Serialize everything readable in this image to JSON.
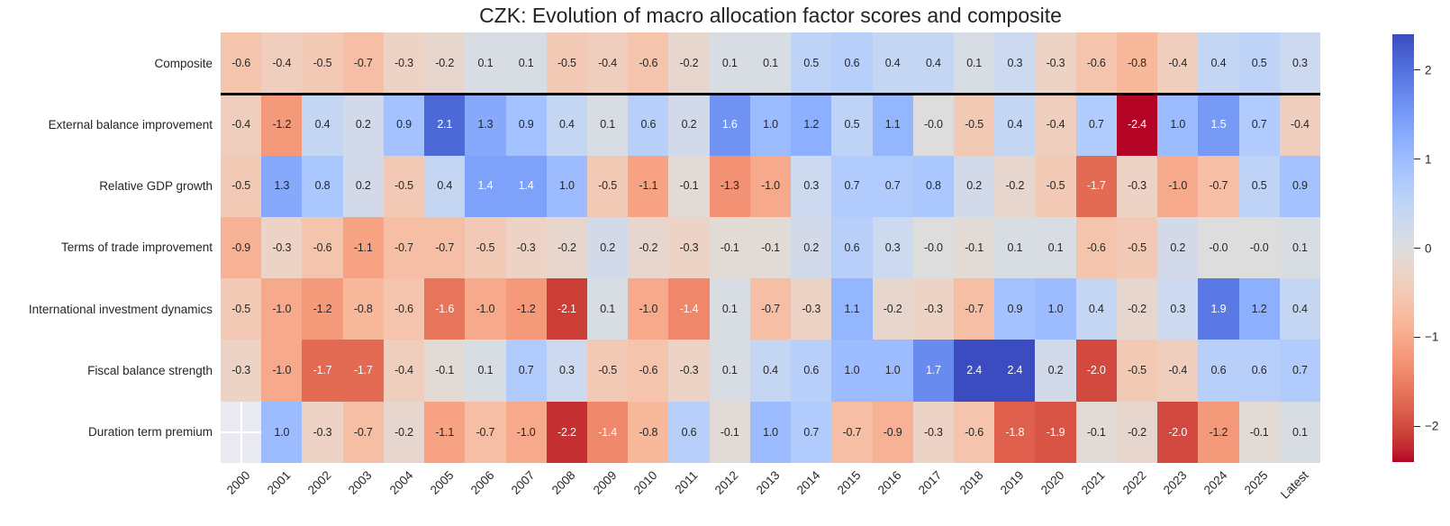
{
  "title": "CZK: Evolution of macro allocation factor scores and composite",
  "chart_data": {
    "type": "heatmap",
    "title": "CZK: Evolution of macro allocation factor scores and composite",
    "categories": [
      "2000",
      "2001",
      "2002",
      "2003",
      "2004",
      "2005",
      "2006",
      "2007",
      "2008",
      "2009",
      "2010",
      "2011",
      "2012",
      "2013",
      "2014",
      "2015",
      "2016",
      "2017",
      "2018",
      "2019",
      "2020",
      "2021",
      "2022",
      "2023",
      "2024",
      "2025",
      "Latest"
    ],
    "rows": [
      {
        "name": "Composite",
        "values": [
          "-0.6",
          "-0.4",
          "-0.5",
          "-0.7",
          "-0.3",
          "-0.2",
          "0.1",
          "0.1",
          "-0.5",
          "-0.4",
          "-0.6",
          "-0.2",
          "0.1",
          "0.1",
          "0.5",
          "0.6",
          "0.4",
          "0.4",
          "0.1",
          "0.3",
          "-0.3",
          "-0.6",
          "-0.8",
          "-0.4",
          "0.4",
          "0.5",
          "0.3"
        ]
      },
      {
        "name": "External balance improvement",
        "values": [
          "-0.4",
          "-1.2",
          "0.4",
          "0.2",
          "0.9",
          "2.1",
          "1.3",
          "0.9",
          "0.4",
          "0.1",
          "0.6",
          "0.2",
          "1.6",
          "1.0",
          "1.2",
          "0.5",
          "1.1",
          "-0.0",
          "-0.5",
          "0.4",
          "-0.4",
          "0.7",
          "-2.4",
          "1.0",
          "1.5",
          "0.7",
          "-0.4"
        ]
      },
      {
        "name": "Relative GDP growth",
        "values": [
          "-0.5",
          "1.3",
          "0.8",
          "0.2",
          "-0.5",
          "0.4",
          "1.4",
          "1.4",
          "1.0",
          "-0.5",
          "-1.1",
          "-0.1",
          "-1.3",
          "-1.0",
          "0.3",
          "0.7",
          "0.7",
          "0.8",
          "0.2",
          "-0.2",
          "-0.5",
          "-1.7",
          "-0.3",
          "-1.0",
          "-0.7",
          "0.5",
          "0.9"
        ]
      },
      {
        "name": "Terms of trade improvement",
        "values": [
          "-0.9",
          "-0.3",
          "-0.6",
          "-1.1",
          "-0.7",
          "-0.7",
          "-0.5",
          "-0.3",
          "-0.2",
          "0.2",
          "-0.2",
          "-0.3",
          "-0.1",
          "-0.1",
          "0.2",
          "0.6",
          "0.3",
          "-0.0",
          "-0.1",
          "0.1",
          "0.1",
          "-0.6",
          "-0.5",
          "0.2",
          "-0.0",
          "-0.0",
          "0.1"
        ]
      },
      {
        "name": "International investment dynamics",
        "values": [
          "-0.5",
          "-1.0",
          "-1.2",
          "-0.8",
          "-0.6",
          "-1.6",
          "-1.0",
          "-1.2",
          "-2.1",
          "0.1",
          "-1.0",
          "-1.4",
          "0.1",
          "-0.7",
          "-0.3",
          "1.1",
          "-0.2",
          "-0.3",
          "-0.7",
          "0.9",
          "1.0",
          "0.4",
          "-0.2",
          "0.3",
          "1.9",
          "1.2",
          "0.4"
        ]
      },
      {
        "name": "Fiscal balance strength",
        "values": [
          "-0.3",
          "-1.0",
          "-1.7",
          "-1.7",
          "-0.4",
          "-0.1",
          "0.1",
          "0.7",
          "0.3",
          "-0.5",
          "-0.6",
          "-0.3",
          "0.1",
          "0.4",
          "0.6",
          "1.0",
          "1.0",
          "1.7",
          "2.4",
          "2.4",
          "0.2",
          "-2.0",
          "-0.5",
          "-0.4",
          "0.6",
          "0.6",
          "0.7"
        ]
      },
      {
        "name": "Duration term premium",
        "values": [
          null,
          "1.0",
          "-0.3",
          "-0.7",
          "-0.2",
          "-1.1",
          "-0.7",
          "-1.0",
          "-2.2",
          "-1.4",
          "-0.8",
          "0.6",
          "-0.1",
          "1.0",
          "0.7",
          "-0.7",
          "-0.9",
          "-0.3",
          "-0.6",
          "-1.8",
          "-1.9",
          "-0.1",
          "-0.2",
          "-2.0",
          "-1.2",
          "-0.1",
          "0.1"
        ]
      }
    ],
    "vmin": -2.4,
    "vmax": 2.4,
    "colormap": "coolwarm reversed (blue = high, red = low)",
    "palette_low_to_high": [
      "#b40426",
      "#c0282f",
      "#cb3e38",
      "#d55042",
      "#de604d",
      "#e57058",
      "#ec7f63",
      "#f18d6f",
      "#f49a7b",
      "#f7a687",
      "#f7b194",
      "#f7bba0",
      "#f5c4ad",
      "#f1ccb9",
      "#ecd3c5",
      "#e5d8d1",
      "#dddddd",
      "#d5dbe6",
      "#ccd9ee",
      "#c2d5f4",
      "#b8d0f9",
      "#aec9fd",
      "#a3c2ff",
      "#98b9ff",
      "#8db0fe",
      "#82a5fb",
      "#779af7",
      "#6c8ef1",
      "#6282ea",
      "#5775e1",
      "#4d68d7",
      "#445acc",
      "#3b4cc0"
    ],
    "nan_cell": {
      "row": "Duration term premium",
      "column": "2000",
      "color": "#eaeaf2"
    },
    "separator_after_row": "Composite",
    "colorbar": {
      "position": "right",
      "ticks": [
        {
          "label": "2",
          "value": 2
        },
        {
          "label": "1",
          "value": 1
        },
        {
          "label": "0",
          "value": 0
        },
        {
          "label": "−1",
          "value": -1
        },
        {
          "label": "−2",
          "value": -2
        }
      ]
    },
    "annotation_text_colors": {
      "dark": "#262626",
      "light": "#ffffff"
    },
    "legend_position": "none",
    "grid": false
  }
}
